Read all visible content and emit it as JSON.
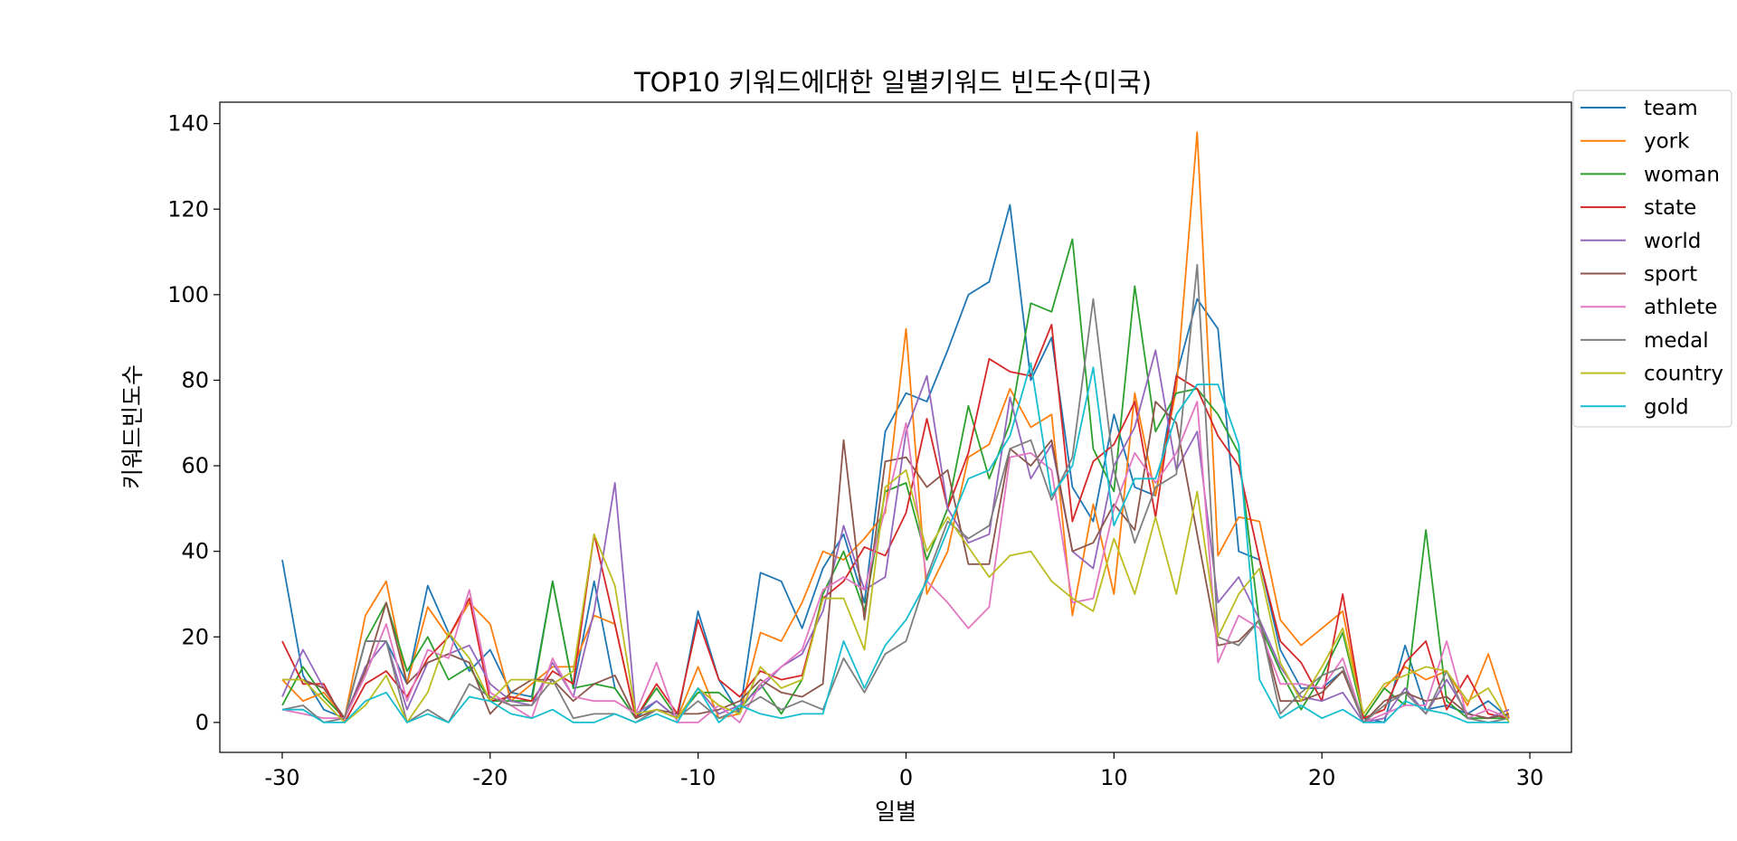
{
  "chart_data": {
    "type": "line",
    "title": "TOP10 키워드에대한 일별키워드 빈도수(미국)",
    "xlabel": "일별",
    "ylabel": "키워드빈도수",
    "xlim": [
      -33,
      32
    ],
    "ylim": [
      -7,
      145
    ],
    "xticks": [
      -30,
      -20,
      -10,
      0,
      10,
      20,
      30
    ],
    "yticks": [
      0,
      20,
      40,
      60,
      80,
      100,
      120,
      140
    ],
    "grid": false,
    "legend_position": "top-right (outside)",
    "x": [
      -30,
      -29,
      -28,
      -27,
      -26,
      -25,
      -24,
      -23,
      -22,
      -21,
      -20,
      -19,
      -18,
      -17,
      -16,
      -15,
      -14,
      -13,
      -12,
      -11,
      -10,
      -9,
      -8,
      -7,
      -6,
      -5,
      -4,
      -3,
      -2,
      -1,
      0,
      1,
      2,
      3,
      4,
      5,
      6,
      7,
      8,
      9,
      10,
      11,
      12,
      13,
      14,
      15,
      16,
      17,
      18,
      19,
      20,
      21,
      22,
      23,
      24,
      25,
      26,
      27,
      28,
      29
    ],
    "series": [
      {
        "name": "team",
        "color": "#1f77b4",
        "values": [
          38,
          11,
          3,
          1,
          19,
          19,
          9,
          32,
          21,
          12,
          17,
          7,
          6,
          33,
          8,
          33,
          8,
          1,
          5,
          1,
          26,
          10,
          2,
          35,
          33,
          22,
          36,
          44,
          28,
          68,
          77,
          75,
          87,
          100,
          103,
          121,
          80,
          90,
          55,
          47,
          72,
          55,
          53,
          81,
          99,
          92,
          40,
          38,
          17,
          8,
          8,
          12,
          1,
          0,
          18,
          3,
          4,
          2,
          5,
          1
        ]
      },
      {
        "name": "york",
        "color": "#ff7f0e",
        "values": [
          10,
          5,
          7,
          1,
          25,
          33,
          9,
          27,
          20,
          28,
          23,
          5,
          9,
          13,
          13,
          25,
          23,
          1,
          3,
          1,
          13,
          1,
          2,
          21,
          19,
          28,
          40,
          38,
          43,
          49,
          92,
          30,
          40,
          62,
          65,
          78,
          69,
          72,
          25,
          51,
          30,
          77,
          53,
          78,
          138,
          39,
          48,
          47,
          24,
          18,
          22,
          26,
          1,
          8,
          13,
          10,
          12,
          4,
          16,
          1
        ]
      },
      {
        "name": "woman",
        "color": "#2ca02c",
        "values": [
          4,
          13,
          6,
          1,
          19,
          28,
          12,
          20,
          10,
          13,
          5,
          5,
          5,
          33,
          8,
          9,
          8,
          1,
          8,
          1,
          7,
          7,
          3,
          9,
          2,
          10,
          30,
          40,
          26,
          54,
          56,
          38,
          50,
          74,
          57,
          70,
          98,
          96,
          113,
          64,
          54,
          102,
          68,
          77,
          78,
          72,
          63,
          23,
          12,
          3,
          11,
          21,
          1,
          8,
          4,
          45,
          5,
          1,
          1,
          1
        ]
      },
      {
        "name": "state",
        "color": "#d62728",
        "values": [
          19,
          9,
          9,
          0,
          9,
          12,
          6,
          15,
          20,
          29,
          5,
          6,
          5,
          12,
          9,
          44,
          23,
          1,
          9,
          2,
          24,
          10,
          6,
          12,
          10,
          11,
          29,
          33,
          41,
          39,
          49,
          71,
          50,
          63,
          85,
          82,
          81,
          93,
          47,
          61,
          65,
          75,
          48,
          81,
          78,
          67,
          60,
          38,
          19,
          14,
          5,
          30,
          1,
          3,
          14,
          19,
          3,
          11,
          2,
          1
        ]
      },
      {
        "name": "world",
        "color": "#9467bd",
        "values": [
          6,
          17,
          8,
          1,
          13,
          19,
          3,
          14,
          16,
          18,
          9,
          5,
          4,
          14,
          6,
          26,
          56,
          2,
          5,
          1,
          8,
          2,
          4,
          8,
          13,
          16,
          26,
          46,
          31,
          34,
          68,
          81,
          50,
          42,
          44,
          76,
          57,
          65,
          40,
          36,
          60,
          69,
          87,
          59,
          68,
          28,
          34,
          24,
          13,
          6,
          5,
          7,
          0,
          1,
          8,
          2,
          10,
          2,
          1,
          3
        ]
      },
      {
        "name": "sport",
        "color": "#8c564b",
        "values": [
          10,
          10,
          8,
          1,
          12,
          28,
          9,
          14,
          16,
          14,
          2,
          7,
          10,
          10,
          5,
          9,
          11,
          1,
          3,
          2,
          2,
          3,
          5,
          10,
          7,
          6,
          9,
          66,
          24,
          61,
          62,
          55,
          59,
          37,
          37,
          64,
          60,
          66,
          40,
          42,
          51,
          45,
          75,
          70,
          44,
          18,
          19,
          24,
          5,
          5,
          7,
          12,
          0,
          5,
          7,
          5,
          6,
          2,
          1,
          2
        ]
      },
      {
        "name": "athlete",
        "color": "#e377c2",
        "values": [
          3,
          2,
          1,
          1,
          11,
          23,
          5,
          17,
          15,
          31,
          7,
          4,
          1,
          15,
          6,
          5,
          5,
          2,
          14,
          0,
          0,
          4,
          0,
          9,
          13,
          17,
          31,
          34,
          31,
          50,
          70,
          33,
          28,
          22,
          27,
          62,
          63,
          59,
          28,
          29,
          50,
          63,
          56,
          63,
          75,
          14,
          25,
          22,
          9,
          9,
          8,
          15,
          0,
          2,
          4,
          4,
          19,
          1,
          3,
          1
        ]
      },
      {
        "name": "medal",
        "color": "#7f7f7f",
        "values": [
          3,
          4,
          0,
          1,
          19,
          19,
          0,
          3,
          0,
          9,
          6,
          4,
          4,
          10,
          1,
          2,
          2,
          0,
          3,
          1,
          5,
          1,
          3,
          6,
          3,
          5,
          3,
          15,
          7,
          16,
          19,
          34,
          47,
          43,
          46,
          64,
          66,
          52,
          62,
          99,
          59,
          42,
          55,
          58,
          107,
          20,
          18,
          24,
          2,
          7,
          11,
          13,
          0,
          4,
          7,
          2,
          12,
          1,
          0,
          1
        ]
      },
      {
        "name": "country",
        "color": "#bcbd22",
        "values": [
          10,
          10,
          5,
          0,
          4,
          11,
          0,
          7,
          21,
          15,
          5,
          10,
          10,
          9,
          12,
          44,
          32,
          2,
          3,
          1,
          8,
          4,
          2,
          13,
          8,
          10,
          29,
          29,
          17,
          55,
          59,
          40,
          48,
          41,
          34,
          39,
          40,
          33,
          29,
          26,
          43,
          30,
          48,
          30,
          54,
          20,
          30,
          36,
          14,
          5,
          13,
          22,
          2,
          9,
          11,
          13,
          12,
          5,
          8,
          0
        ]
      },
      {
        "name": "gold",
        "color": "#17becf",
        "values": [
          3,
          3,
          0,
          0,
          5,
          7,
          0,
          2,
          0,
          6,
          5,
          2,
          1,
          3,
          0,
          0,
          2,
          0,
          2,
          0,
          8,
          0,
          4,
          2,
          1,
          2,
          2,
          19,
          8,
          18,
          24,
          33,
          45,
          57,
          59,
          67,
          84,
          53,
          60,
          83,
          46,
          57,
          57,
          72,
          79,
          79,
          65,
          10,
          1,
          4,
          1,
          3,
          0,
          0,
          5,
          3,
          2,
          0,
          0,
          0
        ]
      }
    ]
  }
}
